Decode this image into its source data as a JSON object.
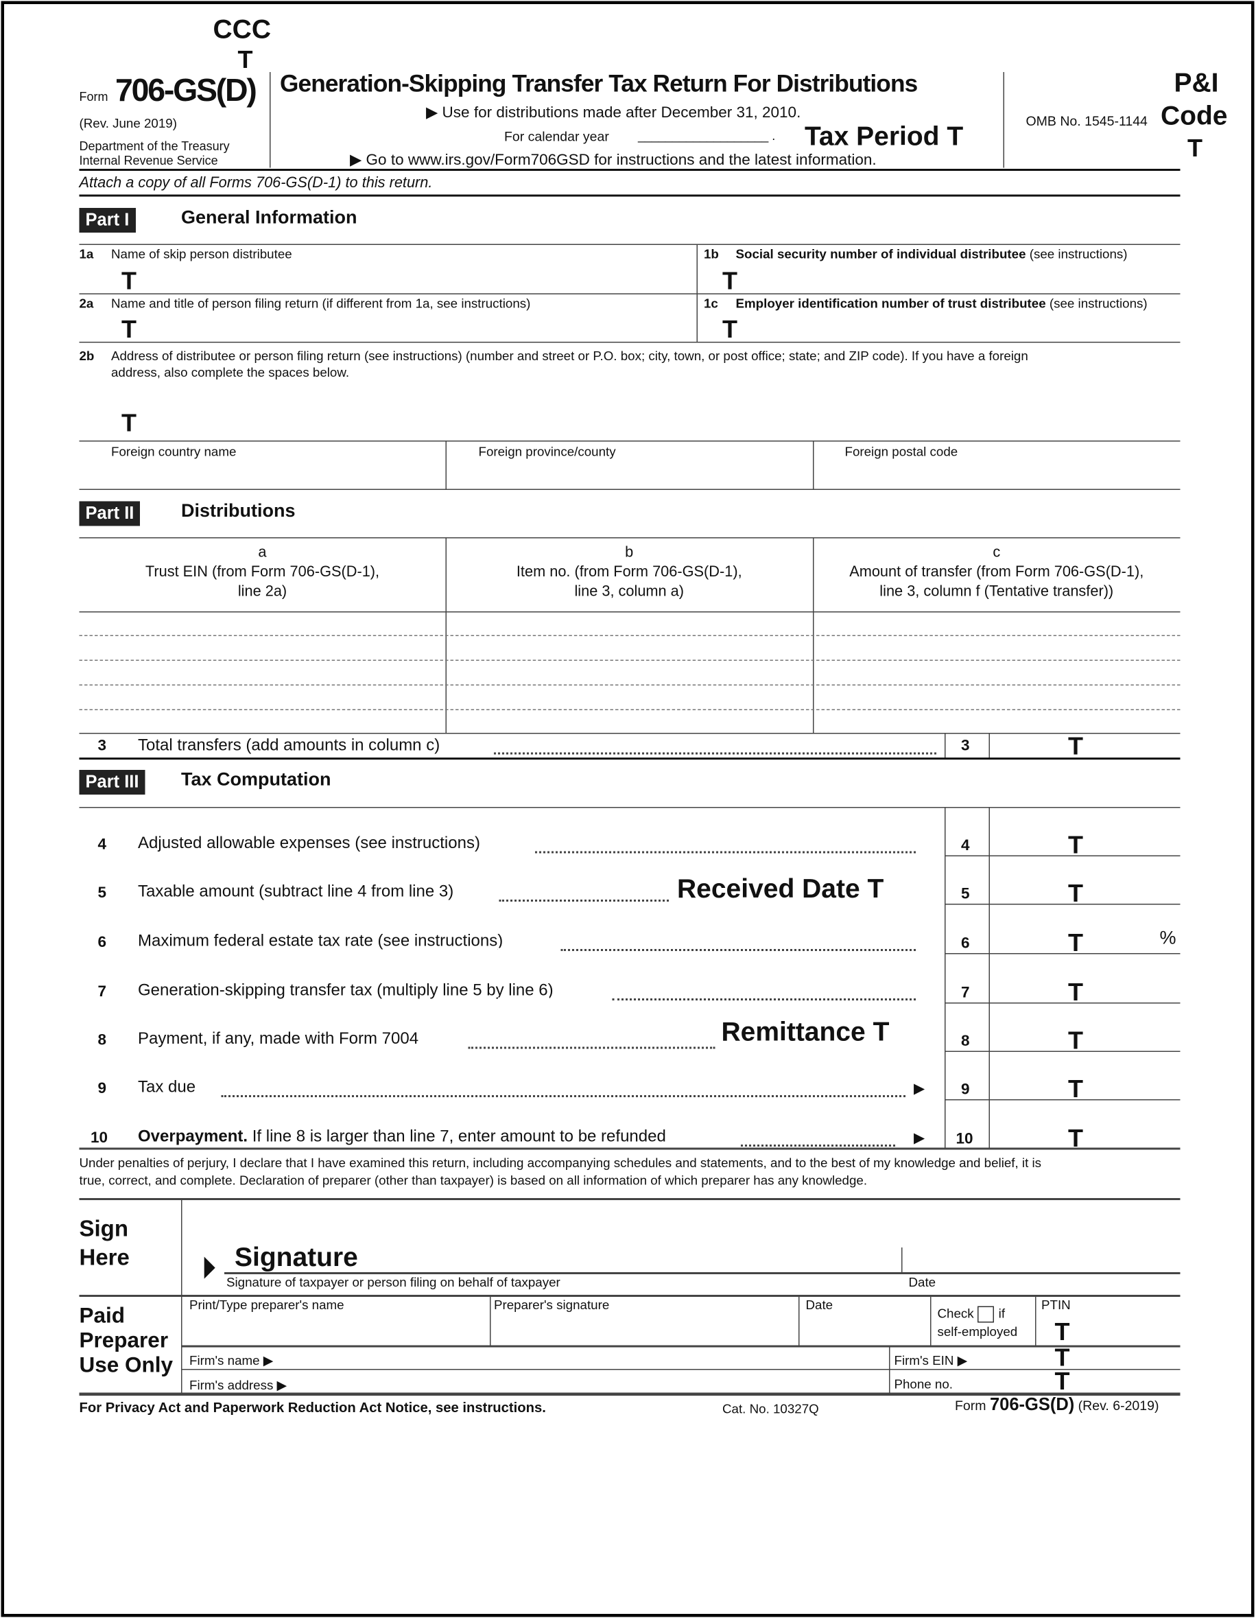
{
  "stamps": {
    "ccc": "CCC",
    "ccc_t": "T",
    "tax_period": "Tax Period T",
    "pi": "P&I",
    "code": "Code",
    "pi_t": "T",
    "received": "Received Date T",
    "remittance": "Remittance T",
    "signature": "Signature",
    "t": "T"
  },
  "header": {
    "form_word": "Form",
    "form_number": "706-GS(D)",
    "rev": "(Rev. June 2019)",
    "dept1": "Department of the Treasury",
    "dept2": "Internal Revenue Service",
    "title": "Generation-Skipping Transfer Tax Return For Distributions",
    "use_for": "▶ Use for distributions made after December 31, 2010.",
    "calendar_year": "For calendar year",
    "calendar_blank": "___________________ .",
    "goto": "▶ Go to www.irs.gov/Form706GSD for instructions and the latest information.",
    "omb": "OMB No. 1545-1144",
    "attach": "Attach a copy of all Forms 706-GS(D-1) to this return."
  },
  "part1": {
    "label": "Part I",
    "title": "General Information",
    "l1a_num": "1a",
    "l1a": "Name of skip person distributee",
    "l1b_num": "1b",
    "l1b": "Social security number of individual distributee",
    "l1b_note": "(see instructions)",
    "l2a_num": "2a",
    "l2a": "Name and title of person filing return (if different from 1a, see instructions)",
    "l1c_num": "1c",
    "l1c": "Employer identification number of trust distributee",
    "l1c_note": "(see instructions)",
    "l2b_num": "2b",
    "l2b_1": "Address of distributee or person filing return (see instructions) (number and street or P.O. box; city, town, or post office; state; and ZIP code). If you have a foreign",
    "l2b_2": "address, also complete the spaces below.",
    "foreign_country": "Foreign country name",
    "foreign_province": "Foreign province/county",
    "foreign_postal": "Foreign postal code"
  },
  "part2": {
    "label": "Part II",
    "title": "Distributions",
    "col_a": [
      "a",
      "Trust EIN (from Form 706-GS(D-1),",
      "line 2a)"
    ],
    "col_b": [
      "b",
      "Item no. (from Form 706-GS(D-1),",
      "line 3, column a)"
    ],
    "col_c": [
      "c",
      "Amount of transfer (from Form 706-GS(D-1),",
      "line 3, column f (Tentative transfer))"
    ],
    "line3_num": "3",
    "line3": "Total transfers (add amounts in column c)"
  },
  "part3": {
    "label": "Part III",
    "title": "Tax Computation",
    "lines": [
      {
        "num": "4",
        "text": "Adjusted allowable expenses (see instructions)"
      },
      {
        "num": "5",
        "text": "Taxable amount (subtract line 4 from line 3)"
      },
      {
        "num": "6",
        "text": "Maximum federal estate tax rate (see instructions)",
        "suffix": "%"
      },
      {
        "num": "7",
        "text": "Generation-skipping transfer tax (multiply line 5 by line 6)"
      },
      {
        "num": "8",
        "text": "Payment, if any, made with Form 7004"
      },
      {
        "num": "9",
        "text": "Tax due"
      },
      {
        "num": "10",
        "bold": "Overpayment.",
        "text": "If line 8 is larger than line 7, enter amount to be refunded"
      }
    ]
  },
  "perjury": [
    "Under penalties of perjury, I declare that I have examined this return, including accompanying schedules and statements, and to the best of my knowledge and belief, it is",
    "true, correct, and complete. Declaration of preparer (other than taxpayer) is based on all information of which preparer has any knowledge."
  ],
  "sign": {
    "sign": "Sign",
    "here": "Here",
    "caption": "Signature of taxpayer or person filing on behalf of taxpayer",
    "date": "Date"
  },
  "preparer": {
    "title": [
      "Paid",
      "Preparer",
      "Use Only"
    ],
    "name": "Print/Type preparer's name",
    "signature": "Preparer's signature",
    "date": "Date",
    "check": "Check",
    "if": "if",
    "self_employed": "self-employed",
    "ptin": "PTIN",
    "firm_name": "Firm's name ▶",
    "firm_ein": "Firm's EIN ▶",
    "firm_address": "Firm's address ▶",
    "phone": "Phone no."
  },
  "footer": {
    "privacy": "For Privacy Act and Paperwork Reduction Act Notice, see instructions.",
    "cat": "Cat. No. 10327Q",
    "form_word": "Form",
    "form_number": "706-GS(D)",
    "rev": "(Rev. 6-2019)"
  }
}
